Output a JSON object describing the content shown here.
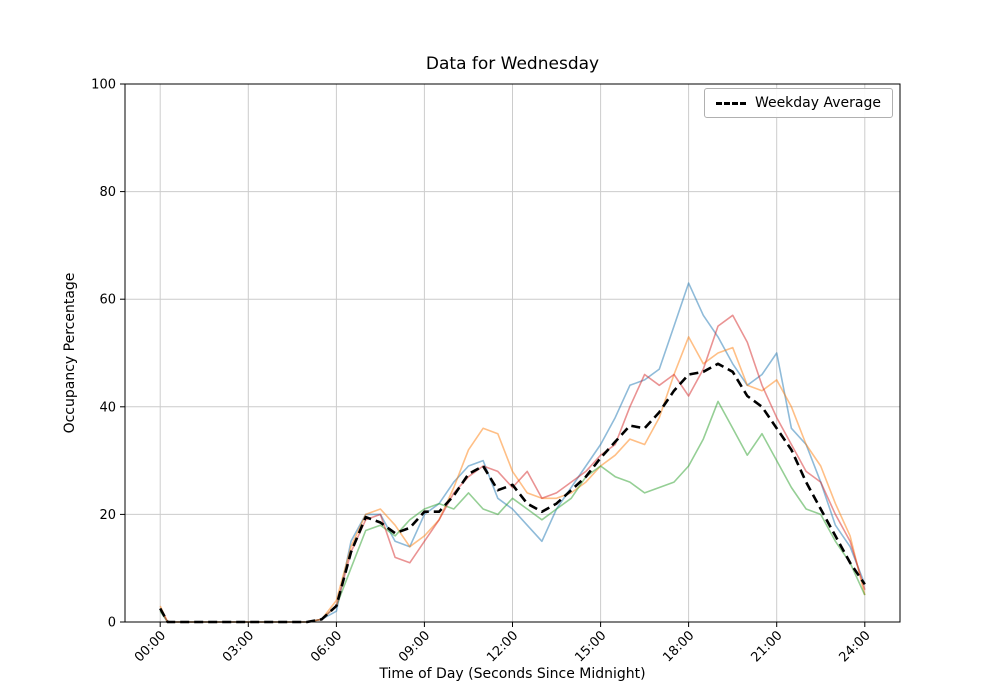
{
  "chart_data": {
    "type": "line",
    "title": "Data for Wednesday",
    "xlabel": "Time of Day (Seconds Since Midnight)",
    "ylabel": "Occupancy Percentage",
    "ylim": [
      0,
      100
    ],
    "xlim_data": [
      0,
      86400
    ],
    "x_margin_frac": 0.05,
    "grid": true,
    "grid_color": "#cccccc",
    "spine_color": "#000000",
    "legend_position": "upper right",
    "x_ticks": {
      "values": [
        0,
        10800,
        21600,
        32400,
        43200,
        54000,
        64800,
        75600,
        86400
      ],
      "labels": [
        "00:00",
        "03:00",
        "06:00",
        "09:00",
        "12:00",
        "15:00",
        "18:00",
        "21:00",
        "24:00"
      ]
    },
    "y_ticks": {
      "values": [
        0,
        20,
        40,
        60,
        80,
        100
      ],
      "labels": [
        "0",
        "20",
        "40",
        "60",
        "80",
        "100"
      ]
    },
    "x": [
      0,
      900,
      1800,
      3600,
      5400,
      7200,
      9000,
      10800,
      12600,
      14400,
      16200,
      18000,
      19800,
      21600,
      23400,
      25200,
      27000,
      28800,
      30600,
      32400,
      34200,
      36000,
      37800,
      39600,
      41400,
      43200,
      45000,
      46800,
      48600,
      50400,
      52200,
      54000,
      55800,
      57600,
      59400,
      61200,
      63000,
      64800,
      66600,
      68400,
      70200,
      72000,
      73800,
      75600,
      77400,
      79200,
      81000,
      82800,
      84600,
      86400
    ],
    "series": [
      {
        "name": "day-series-1",
        "color": "#1f77b4",
        "opacity": 0.5,
        "line_width": 1.6,
        "dashed": false,
        "values": [
          2.5,
          0,
          0,
          0,
          0,
          0,
          0,
          0,
          0,
          0,
          0,
          0,
          0.5,
          2,
          15,
          20,
          20,
          15,
          14,
          20,
          22,
          26,
          29,
          30,
          23,
          21,
          18,
          15,
          21,
          25,
          29,
          33,
          38,
          44,
          45,
          47,
          55,
          63,
          57,
          53,
          48,
          44,
          46,
          50,
          36,
          33,
          26,
          18,
          14,
          7
        ]
      },
      {
        "name": "day-series-2",
        "color": "#ff7f0e",
        "opacity": 0.5,
        "line_width": 1.6,
        "dashed": false,
        "values": [
          3,
          0,
          0,
          0,
          0,
          0,
          0,
          0,
          0,
          0,
          0,
          0,
          0.5,
          4,
          14,
          20,
          21,
          18,
          14,
          16,
          19,
          25,
          32,
          36,
          35,
          28,
          24,
          23,
          23,
          24,
          26,
          29,
          31,
          34,
          33,
          38,
          46,
          53,
          48,
          50,
          51,
          44,
          43,
          45,
          40,
          33,
          29,
          22,
          16,
          5
        ]
      },
      {
        "name": "day-series-3",
        "color": "#2ca02c",
        "opacity": 0.5,
        "line_width": 1.6,
        "dashed": false,
        "values": [
          2,
          0,
          0,
          0,
          0,
          0,
          0,
          0,
          0,
          0,
          0,
          0,
          0.5,
          3,
          10,
          17,
          18,
          16,
          19,
          21,
          22,
          21,
          24,
          21,
          20,
          23,
          21,
          19,
          21,
          23,
          27,
          29,
          27,
          26,
          24,
          25,
          26,
          29,
          34,
          41,
          36,
          31,
          35,
          30,
          25,
          21,
          20,
          15,
          11,
          5
        ]
      },
      {
        "name": "day-series-4",
        "color": "#d62728",
        "opacity": 0.5,
        "line_width": 1.6,
        "dashed": false,
        "values": [
          2.5,
          0,
          0,
          0,
          0,
          0,
          0,
          0,
          0,
          0,
          0,
          0,
          0.5,
          3,
          13,
          19,
          20,
          12,
          11,
          15,
          19,
          24,
          27,
          29,
          28,
          25,
          28,
          23,
          24,
          26,
          28,
          31,
          33,
          40,
          46,
          44,
          46,
          42,
          47,
          55,
          57,
          52,
          44,
          38,
          33,
          28,
          26,
          20,
          15,
          6
        ]
      },
      {
        "name": "weekday-average",
        "color": "#000000",
        "opacity": 1,
        "line_width": 2.6,
        "dashed": true,
        "values": [
          2.5,
          0,
          0,
          0,
          0,
          0,
          0,
          0,
          0,
          0,
          0,
          0,
          0.5,
          3,
          13,
          19.5,
          18.5,
          16.5,
          17.5,
          20.5,
          20.5,
          23.5,
          27.5,
          29,
          24.5,
          25.5,
          22,
          20.5,
          22,
          24.5,
          27,
          30.5,
          33.5,
          36.5,
          36,
          39,
          43,
          46,
          46.5,
          48,
          46.5,
          42,
          40,
          36,
          32,
          26,
          21,
          16,
          11,
          7
        ]
      }
    ],
    "legend": [
      {
        "label": "Weekday Average",
        "color": "#000000",
        "dashed": true
      }
    ]
  }
}
